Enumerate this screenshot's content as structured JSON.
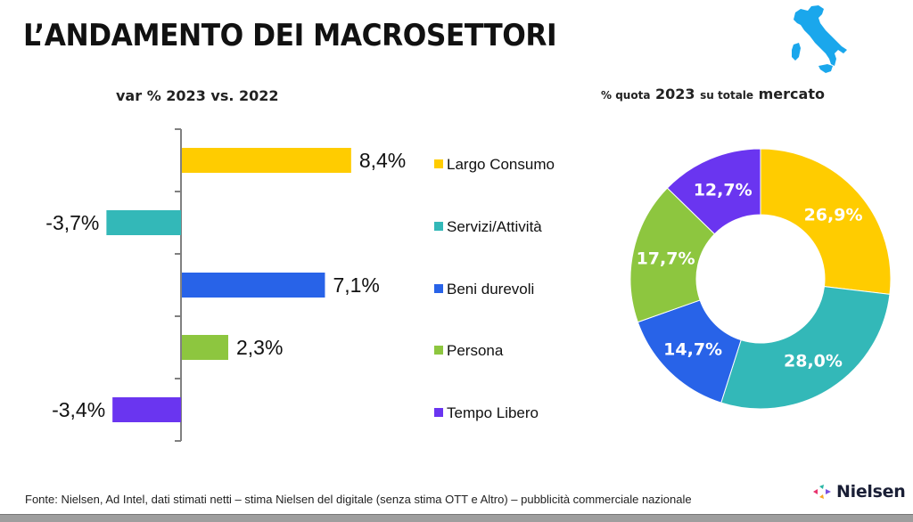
{
  "header": {
    "title": "L’ANDAMENTO DEI MACROSETTORI",
    "map_icon": "italy-map-icon"
  },
  "footer": {
    "source": "Fonte: Nielsen, Ad Intel, dati stimati netti – stima Nielsen del digitale (senza stima OTT e Altro) – pubblicità commerciale nazionale",
    "brand": "Nielsen",
    "brand_icon": "nielsen-logo-icon"
  },
  "colors": {
    "largo_consumo": "#FFCC00",
    "servizi": "#33B8B8",
    "beni": "#2863E8",
    "persona": "#8DC63F",
    "tempo_libero": "#6A35F0",
    "map": "#1AA7EC",
    "axis": "#808080"
  },
  "chart_data": [
    {
      "type": "bar",
      "orientation": "horizontal",
      "title": "var % 2023 vs. 2022",
      "categories": [
        "Largo Consumo",
        "Servizi/Attività",
        "Beni durevoli",
        "Persona",
        "Tempo Libero"
      ],
      "values": [
        8.4,
        -3.7,
        7.1,
        2.3,
        -3.4
      ],
      "labels": [
        "8,4%",
        "-3,7%",
        "7,1%",
        "2,3%",
        "-3,4%"
      ],
      "colors": [
        "#FFCC00",
        "#33B8B8",
        "#2863E8",
        "#8DC63F",
        "#6A35F0"
      ],
      "xlim": [
        -9,
        9
      ],
      "grid": false,
      "legend": "right"
    },
    {
      "type": "pie",
      "donut": true,
      "title_parts": [
        "% quota",
        "2023",
        "su totale",
        "mercato"
      ],
      "categories": [
        "Largo Consumo",
        "Servizi/Attività",
        "Beni durevoli",
        "Persona",
        "Tempo Libero"
      ],
      "values": [
        26.9,
        28.0,
        14.7,
        17.7,
        12.7
      ],
      "labels": [
        "26,9%",
        "28,0%",
        "14,7%",
        "17,7%",
        "12,7%"
      ],
      "colors": [
        "#FFCC00",
        "#33B8B8",
        "#2863E8",
        "#8DC63F",
        "#6A35F0"
      ],
      "start": "12 o'clock",
      "direction": "clockwise"
    }
  ]
}
